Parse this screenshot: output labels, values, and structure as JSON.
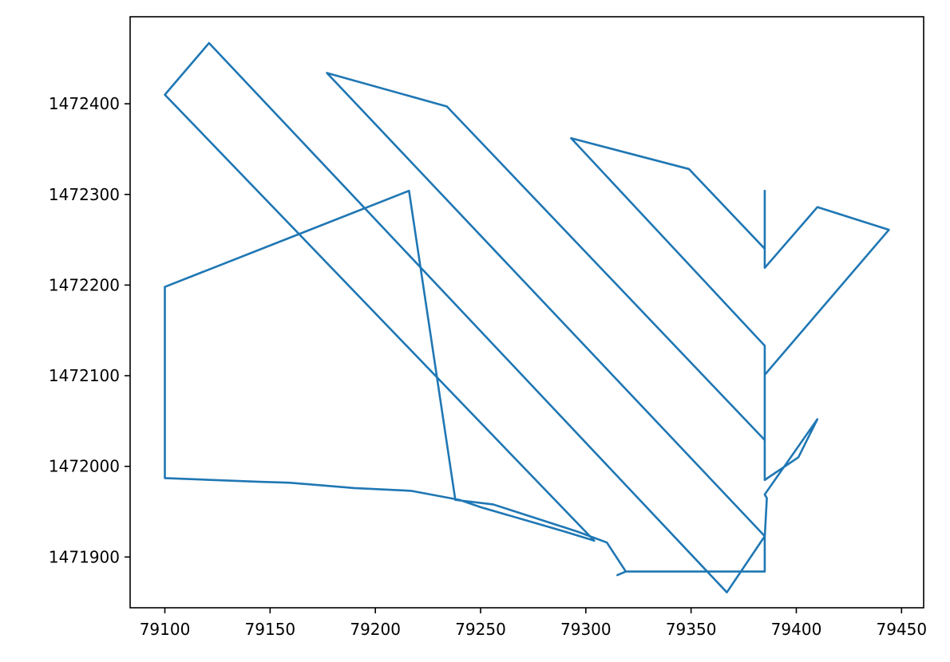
{
  "chart_data": {
    "type": "line",
    "title": "",
    "xlabel": "",
    "ylabel": "",
    "xlim": [
      79083.5,
      79460.5
    ],
    "ylim": [
      1471844,
      1472496
    ],
    "x_ticks": [
      79100,
      79150,
      79200,
      79250,
      79300,
      79350,
      79400,
      79450
    ],
    "y_ticks": [
      1471900,
      1472000,
      1472100,
      1472200,
      1472300,
      1472400
    ],
    "grid": false,
    "legend": "none",
    "line_color": "#1f77b4",
    "series": [
      {
        "x": [
          79315,
          79319,
          79385,
          79385,
          79386,
          79385,
          79410,
          79401,
          79385,
          79385,
          79444,
          79410,
          79385,
          79385,
          79385,
          79349,
          79293,
          79385,
          79385,
          79234,
          79177,
          79385,
          79367,
          79121,
          79100,
          79304,
          79290,
          79250,
          79240,
          79217,
          79190,
          79159,
          79145,
          79100,
          79100,
          79100,
          79216,
          79238,
          79256,
          79296,
          79310,
          79319
        ],
        "y": [
          1471880,
          1471884,
          1471884,
          1471922,
          1471965,
          1471969,
          1472052,
          1472010,
          1471985,
          1472101,
          1472261,
          1472286,
          1472219,
          1472304,
          1472240,
          1472328,
          1472362,
          1472133,
          1472029,
          1472397,
          1472434,
          1471923,
          1471861,
          1472467,
          1472410,
          1471918,
          1471928,
          1471955,
          1471963,
          1471973,
          1471976,
          1471982,
          1471983,
          1471987,
          1472092,
          1472198,
          1472304,
          1471963,
          1471958,
          1471928,
          1471916,
          1471884
        ]
      }
    ]
  }
}
